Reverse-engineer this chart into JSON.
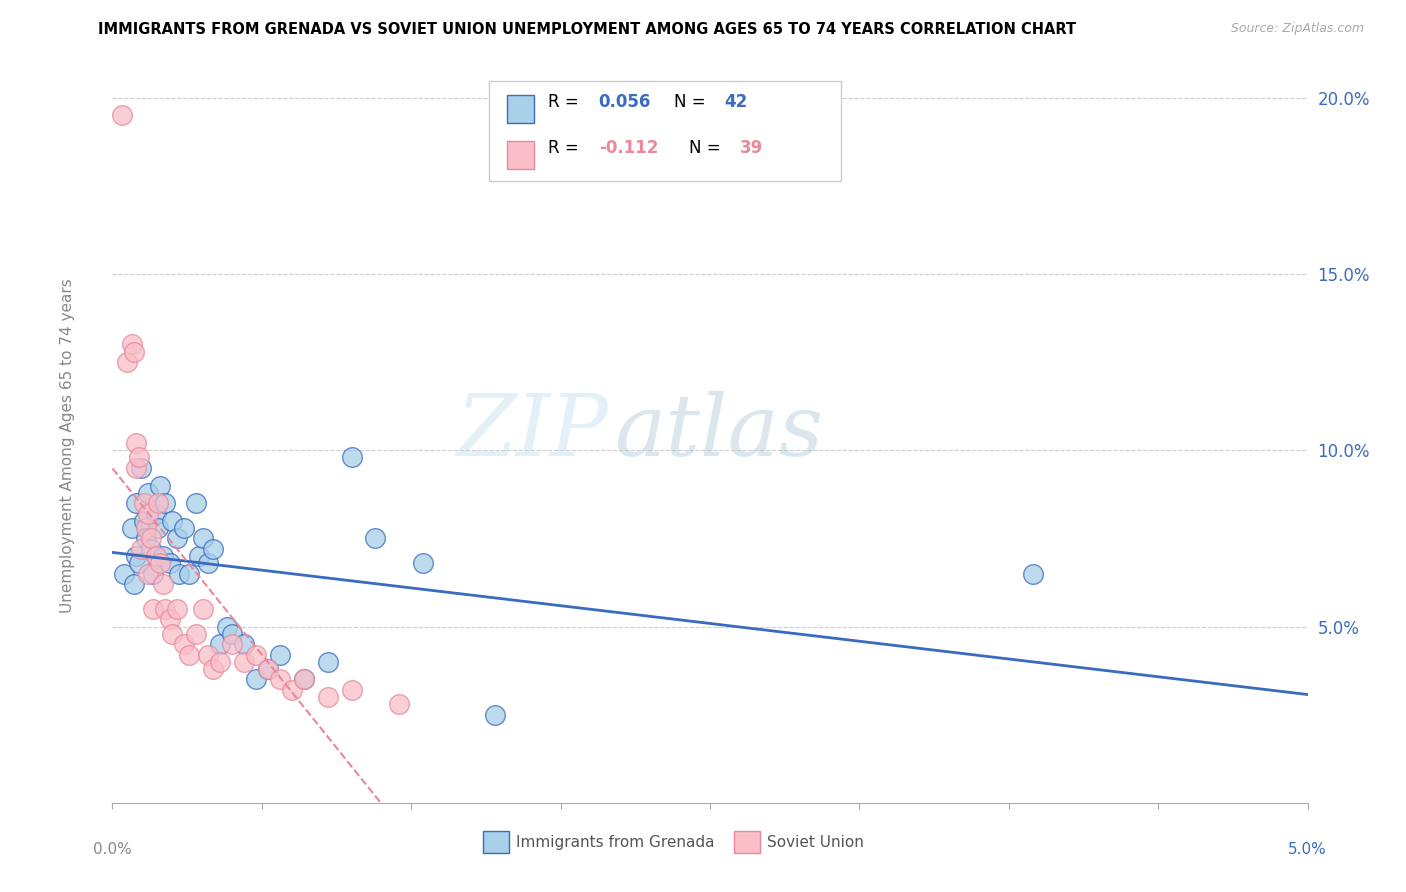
{
  "title": "IMMIGRANTS FROM GRENADA VS SOVIET UNION UNEMPLOYMENT AMONG AGES 65 TO 74 YEARS CORRELATION CHART",
  "source": "Source: ZipAtlas.com",
  "ylabel": "Unemployment Among Ages 65 to 74 years",
  "grenada_color": "#a8d0e8",
  "soviet_color": "#f9bec8",
  "grenada_line_color": "#3a6bbf",
  "soviet_line_color": "#e8889a",
  "watermark_zip": "ZIP",
  "watermark_atlas": "atlas",
  "grenada_R": "0.056",
  "grenada_N": "42",
  "soviet_R": "-0.112",
  "soviet_N": "39",
  "xlim": [
    0.0,
    5.0
  ],
  "ylim": [
    0.0,
    21.0
  ],
  "yticks": [
    0.0,
    5.0,
    10.0,
    15.0,
    20.0
  ],
  "ytick_labels": [
    "",
    "5.0%",
    "10.0%",
    "15.0%",
    "20.0%"
  ],
  "grenada_x": [
    0.05,
    0.08,
    0.09,
    0.1,
    0.1,
    0.11,
    0.12,
    0.13,
    0.14,
    0.15,
    0.16,
    0.17,
    0.18,
    0.19,
    0.2,
    0.21,
    0.22,
    0.24,
    0.25,
    0.27,
    0.28,
    0.3,
    0.32,
    0.35,
    0.36,
    0.38,
    0.4,
    0.42,
    0.45,
    0.48,
    0.5,
    0.55,
    0.6,
    0.65,
    0.7,
    0.8,
    0.9,
    1.0,
    1.1,
    1.3,
    3.85,
    1.6
  ],
  "grenada_y": [
    6.5,
    7.8,
    6.2,
    7.0,
    8.5,
    6.8,
    9.5,
    8.0,
    7.5,
    8.8,
    7.2,
    6.5,
    8.2,
    7.8,
    9.0,
    7.0,
    8.5,
    6.8,
    8.0,
    7.5,
    6.5,
    7.8,
    6.5,
    8.5,
    7.0,
    7.5,
    6.8,
    7.2,
    4.5,
    5.0,
    4.8,
    4.5,
    3.5,
    3.8,
    4.2,
    3.5,
    4.0,
    9.8,
    7.5,
    6.8,
    6.5,
    2.5
  ],
  "soviet_x": [
    0.04,
    0.06,
    0.08,
    0.09,
    0.1,
    0.1,
    0.11,
    0.12,
    0.13,
    0.14,
    0.15,
    0.15,
    0.16,
    0.17,
    0.18,
    0.19,
    0.2,
    0.21,
    0.22,
    0.24,
    0.25,
    0.27,
    0.3,
    0.32,
    0.35,
    0.38,
    0.4,
    0.42,
    0.45,
    0.5,
    0.55,
    0.6,
    0.65,
    0.7,
    0.75,
    0.8,
    0.9,
    1.0,
    1.2
  ],
  "soviet_y": [
    19.5,
    12.5,
    13.0,
    12.8,
    9.5,
    10.2,
    9.8,
    7.2,
    8.5,
    7.8,
    6.5,
    8.2,
    7.5,
    5.5,
    7.0,
    8.5,
    6.8,
    6.2,
    5.5,
    5.2,
    4.8,
    5.5,
    4.5,
    4.2,
    4.8,
    5.5,
    4.2,
    3.8,
    4.0,
    4.5,
    4.0,
    4.2,
    3.8,
    3.5,
    3.2,
    3.5,
    3.0,
    3.2,
    2.8
  ]
}
